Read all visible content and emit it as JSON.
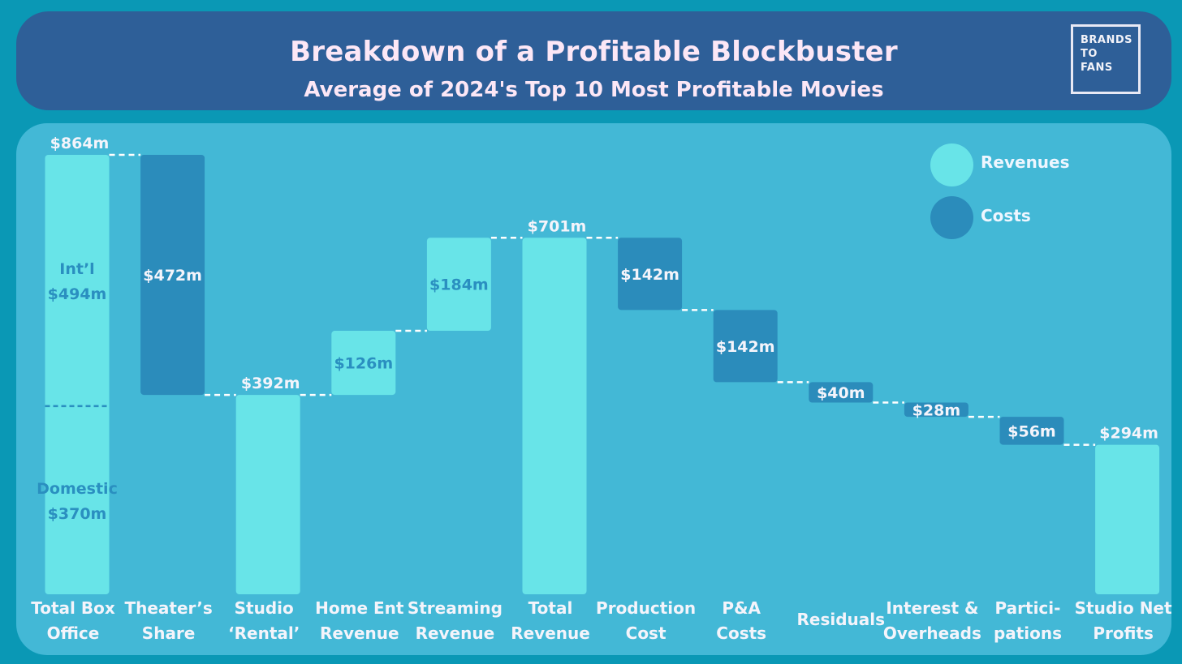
{
  "header": {
    "title": "Breakdown of a Profitable Blockbuster",
    "subtitle": "Average of 2024's Top 10 Most Profitable Movies",
    "logo_lines": [
      "BRANDS",
      "TO",
      "FANS"
    ]
  },
  "legend": {
    "revenues_label": "Revenues",
    "costs_label": "Costs"
  },
  "colors": {
    "background": "#0a98b5",
    "header": "#2e5f98",
    "panel": "#43b8d6",
    "revenue": "#68e4e8",
    "cost": "#2b8cbb",
    "light_text": "#f4f4fb",
    "segment_text": "#2a8fc0"
  },
  "chart_data": {
    "type": "bar",
    "title": "Breakdown of a Profitable Blockbuster",
    "subtitle": "Average of 2024's Top 10 Most Profitable Movies",
    "unit": "$m",
    "ylim": [
      0,
      864
    ],
    "grid": false,
    "legend_position": "top-right",
    "categories": [
      "Total Box Office",
      "Theater's Share",
      "Studio 'Rental'",
      "Home Ent Revenue",
      "Streaming Revenue",
      "Total Revenue",
      "Production Cost",
      "P&A Costs",
      "Residuals",
      "Interest & Overheads",
      "Partici- pations",
      "Studio Net Profits"
    ],
    "steps": [
      {
        "lines": [
          "Total Box",
          "Office"
        ],
        "kind": "revenue",
        "base": 0,
        "top": 864,
        "value": 864,
        "label": "$864m",
        "label_pos": "above",
        "segments": [
          {
            "name": "Domestic",
            "value": 370,
            "name_label": "Domestic",
            "value_label": "$370m"
          },
          {
            "name": "Int'l",
            "value": 494,
            "name_label": "Int’l",
            "value_label": "$494m"
          }
        ]
      },
      {
        "lines": [
          "Theater’s",
          "Share"
        ],
        "kind": "cost",
        "base": 392,
        "top": 864,
        "value": 472,
        "label": "$472m",
        "label_pos": "inside"
      },
      {
        "lines": [
          "Studio",
          "‘Rental’"
        ],
        "kind": "revenue",
        "base": 0,
        "top": 392,
        "value": 392,
        "label": "$392m",
        "label_pos": "above"
      },
      {
        "lines": [
          "Home Ent",
          "Revenue"
        ],
        "kind": "revenue",
        "base": 392,
        "top": 518,
        "value": 126,
        "label": "$126m",
        "label_pos": "inside"
      },
      {
        "lines": [
          "Streaming",
          "Revenue"
        ],
        "kind": "revenue",
        "base": 518,
        "top": 701,
        "value": 184,
        "label": "$184m",
        "label_pos": "inside"
      },
      {
        "lines": [
          "Total",
          "Revenue"
        ],
        "kind": "revenue",
        "base": 0,
        "top": 701,
        "value": 701,
        "label": "$701m",
        "label_pos": "above"
      },
      {
        "lines": [
          "Production",
          "Cost"
        ],
        "kind": "cost",
        "base": 559,
        "top": 701,
        "value": 142,
        "label": "$142m",
        "label_pos": "inside"
      },
      {
        "lines": [
          "P&A",
          "Costs"
        ],
        "kind": "cost",
        "base": 417,
        "top": 559,
        "value": 142,
        "label": "$142m",
        "label_pos": "inside"
      },
      {
        "lines": [
          "Residuals"
        ],
        "kind": "cost",
        "base": 377,
        "top": 417,
        "value": 40,
        "label": "$40m",
        "label_pos": "inside"
      },
      {
        "lines": [
          "Interest &",
          "Overheads"
        ],
        "kind": "cost",
        "base": 349,
        "top": 377,
        "value": 28,
        "label": "$28m",
        "label_pos": "inside"
      },
      {
        "lines": [
          "Partici-",
          "pations"
        ],
        "kind": "cost",
        "base": 294,
        "top": 349,
        "value": 56,
        "label": "$56m",
        "label_pos": "inside"
      },
      {
        "lines": [
          "Studio Net",
          "Profits"
        ],
        "kind": "revenue",
        "base": 0,
        "top": 294,
        "value": 294,
        "label": "$294m",
        "label_pos": "above"
      }
    ]
  }
}
